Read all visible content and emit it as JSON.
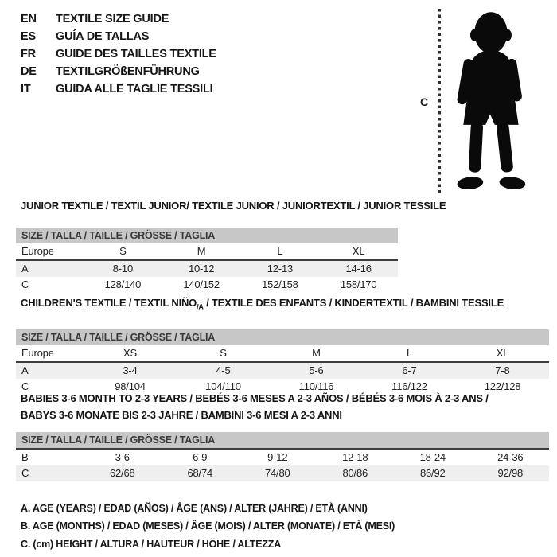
{
  "page": {
    "background": "#ffffff",
    "text_color": "#1d1d1d"
  },
  "header": {
    "languages": [
      {
        "code": "EN",
        "title": "TEXTILE SIZE GUIDE"
      },
      {
        "code": "ES",
        "title": "GUÍA DE TALLAS"
      },
      {
        "code": "FR",
        "title": "GUIDE DES TAILLES TEXTILE"
      },
      {
        "code": "DE",
        "title": "TEXTILGRÖßENFÜHRUNG"
      },
      {
        "code": "IT",
        "title": "GUIDA ALLE TAGLIE TESSILI"
      }
    ]
  },
  "figure": {
    "silhouette": "toddler-standing-silhouette",
    "measure_label": "C",
    "line_style": "vertical-dashed"
  },
  "colors": {
    "size_bar_bg": "#c7c7c7",
    "row_shade_bg": "#f0efef",
    "divider": "#3d3d3d"
  },
  "tables": [
    {
      "id": "junior",
      "title_lines": [
        "JUNIOR TEXTILE / TEXTIL JUNIOR/ TEXTILE JUNIOR / JUNIORTEXTIL / JUNIOR TESSILE"
      ],
      "size_header": "SIZE / TALLA / TAILLE / GRÖSSE / TAGLIA",
      "header_divider": false,
      "rows": [
        {
          "label": "Europe",
          "cells": [
            "S",
            "M",
            "L",
            "XL"
          ],
          "shaded": false,
          "divider_below": true
        },
        {
          "label": "A",
          "cells": [
            "8-10",
            "10-12",
            "12-13",
            "14-16"
          ],
          "shaded": true,
          "divider_below": false
        },
        {
          "label": "C",
          "cells": [
            "128/140",
            "140/152",
            "152/158",
            "158/170"
          ],
          "shaded": false,
          "divider_below": false
        }
      ]
    },
    {
      "id": "children",
      "title_lines": [
        {
          "parts": [
            {
              "t": "CHILDREN'S TEXTILE / TEXTIL NIÑO"
            },
            {
              "t": "/A",
              "sub": true
            },
            {
              "t": " / TEXTILE DES ENFANTS / KINDERTEXTIL / BAMBINI TESSILE"
            }
          ]
        }
      ],
      "size_header": "SIZE / TALLA / TAILLE / GRÖSSE / TAGLIA",
      "header_divider": false,
      "rows": [
        {
          "label": "Europe",
          "cells": [
            "XS",
            "S",
            "M",
            "L",
            "XL"
          ],
          "shaded": false,
          "divider_below": true
        },
        {
          "label": "A",
          "cells": [
            "3-4",
            "4-5",
            "5-6",
            "6-7",
            "7-8"
          ],
          "shaded": true,
          "divider_below": false
        },
        {
          "label": "C",
          "cells": [
            "98/104",
            "104/110",
            "110/116",
            "116/122",
            "122/128"
          ],
          "shaded": false,
          "divider_below": false
        }
      ]
    },
    {
      "id": "babies",
      "title_lines": [
        "BABIES 3-6 MONTH TO 2-3 YEARS / BEBÉS 3-6 MESES A 2-3 AÑOS / BÉBÉS 3-6 MOIS À 2-3 ANS /",
        "BABYS 3-6 MONATE BIS 2-3 JAHRE / BAMBINI 3-6 MESI A 2-3 ANNI"
      ],
      "size_header": "SIZE / TALLA / TAILLE / GRÖSSE / TAGLIA",
      "header_divider": true,
      "rows": [
        {
          "label": "B",
          "cells": [
            "3-6",
            "6-9",
            "9-12",
            "12-18",
            "18-24",
            "24-36"
          ],
          "shaded": false,
          "divider_below": false
        },
        {
          "label": "C",
          "cells": [
            "62/68",
            "68/74",
            "74/80",
            "80/86",
            "86/92",
            "92/98"
          ],
          "shaded": true,
          "divider_below": false
        }
      ]
    }
  ],
  "legend": [
    "A. AGE (YEARS) / EDAD (AÑOS) / ÂGE (ANS) / ALTER (JAHRE) / ETÀ (ANNI)",
    "B. AGE (MONTHS) / EDAD (MESES) / ÂGE (MOIS) / ALTER (MONATE) / ETÀ (MESI)",
    "C. (cm) HEIGHT / ALTURA / HAUTEUR / HÖHE / ALTEZZA"
  ]
}
